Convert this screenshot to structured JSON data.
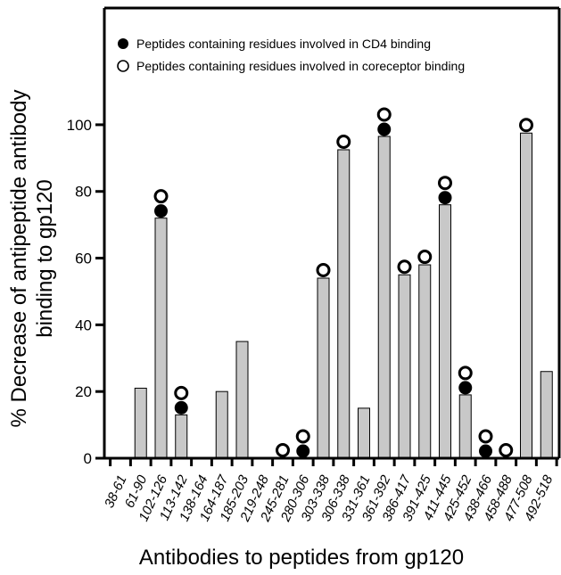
{
  "chart_data": {
    "type": "bar",
    "xlabel": "Antibodies to peptides from gp120",
    "ylabel_lines": [
      "% Decrease of antipeptide antibody",
      "binding to gp120"
    ],
    "ylim": [
      0,
      135
    ],
    "yticks": [
      0,
      20,
      40,
      60,
      80,
      100
    ],
    "grid": false,
    "legend_position": "top-left",
    "bar_color": "#c8c8c8",
    "categories": [
      "38-61",
      "61-90",
      "102-126",
      "113-142",
      "138-164",
      "164-187",
      "185-203",
      "219-248",
      "245-281",
      "280-306",
      "303-338",
      "306-338",
      "331-361",
      "361-392",
      "386-417",
      "391-425",
      "411-445",
      "425-452",
      "438-466",
      "458-488",
      "477-508",
      "492-518"
    ],
    "values": [
      0,
      21,
      72,
      13,
      0,
      20,
      35,
      0,
      0,
      0,
      54,
      92.5,
      15,
      96.5,
      55,
      58,
      76,
      19,
      0,
      0,
      97.5,
      26
    ],
    "cd4_binding": [
      false,
      false,
      true,
      true,
      false,
      false,
      false,
      false,
      false,
      true,
      false,
      false,
      false,
      true,
      false,
      false,
      true,
      true,
      true,
      false,
      false,
      false
    ],
    "coreceptor_binding": [
      false,
      false,
      true,
      true,
      false,
      false,
      false,
      false,
      true,
      true,
      true,
      true,
      false,
      true,
      true,
      true,
      true,
      true,
      true,
      true,
      true,
      false
    ],
    "legend": [
      {
        "marker": "filled-circle",
        "label": "Peptides containing residues involved in CD4 binding"
      },
      {
        "marker": "open-circle",
        "label": "Peptides containing residues involved in coreceptor binding"
      }
    ]
  }
}
